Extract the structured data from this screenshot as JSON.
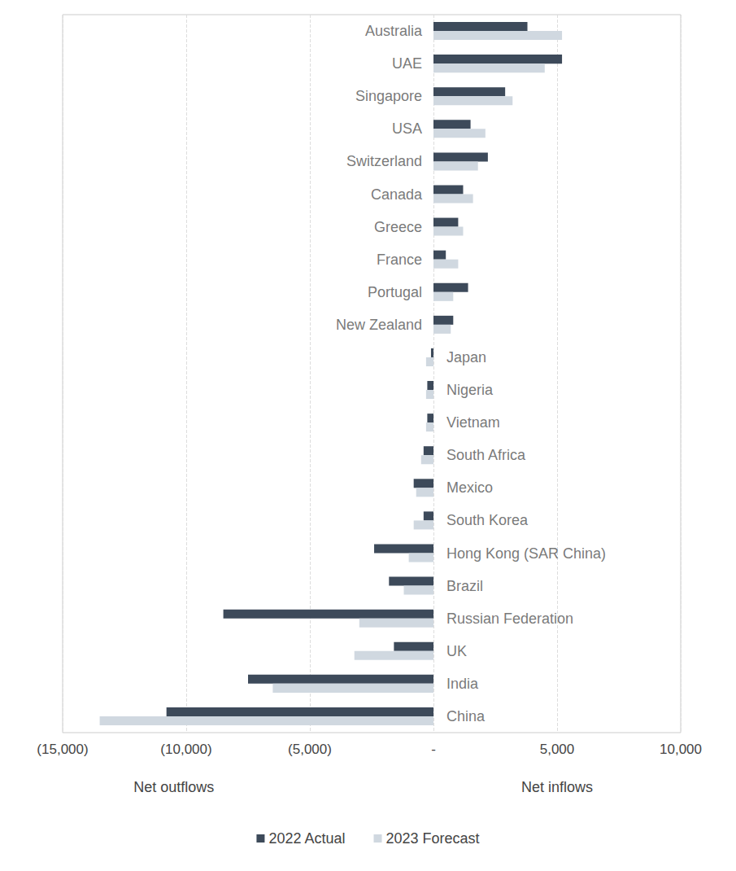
{
  "chart_data": {
    "type": "bar",
    "orientation": "horizontal",
    "categories": [
      "Australia",
      "UAE",
      "Singapore",
      "USA",
      "Switzerland",
      "Canada",
      "Greece",
      "France",
      "Portugal",
      "New Zealand",
      "Japan",
      "Nigeria",
      "Vietnam",
      "South Africa",
      "Mexico",
      "South Korea",
      "Hong Kong (SAR China)",
      "Brazil",
      "Russian Federation",
      "UK",
      "India",
      "China"
    ],
    "series": [
      {
        "name": "2022 Actual",
        "color": "#3d4a5a",
        "values": [
          3800,
          5200,
          2900,
          1500,
          2200,
          1200,
          1000,
          500,
          1400,
          800,
          -100,
          -250,
          -250,
          -400,
          -800,
          -400,
          -2400,
          -1800,
          -8500,
          -1600,
          -7500,
          -10800
        ]
      },
      {
        "name": "2023 Forecast",
        "color": "#d0d8e0",
        "values": [
          5200,
          4500,
          3200,
          2100,
          1800,
          1600,
          1200,
          1000,
          800,
          700,
          -300,
          -300,
          -300,
          -500,
          -700,
          -800,
          -1000,
          -1200,
          -3000,
          -3200,
          -6500,
          -13500
        ]
      }
    ],
    "xlim": [
      -15000,
      10000
    ],
    "xticks": [
      {
        "value": -15000,
        "label": "(15,000)"
      },
      {
        "value": -10000,
        "label": "(10,000)"
      },
      {
        "value": -5000,
        "label": "(5,000)"
      },
      {
        "value": 0,
        "label": "-"
      },
      {
        "value": 5000,
        "label": "5,000"
      },
      {
        "value": 10000,
        "label": "10,000"
      }
    ],
    "annotations": [
      "Net outflows",
      "Net inflows"
    ],
    "grid": true,
    "legend": "bottom",
    "data_labels": false
  }
}
